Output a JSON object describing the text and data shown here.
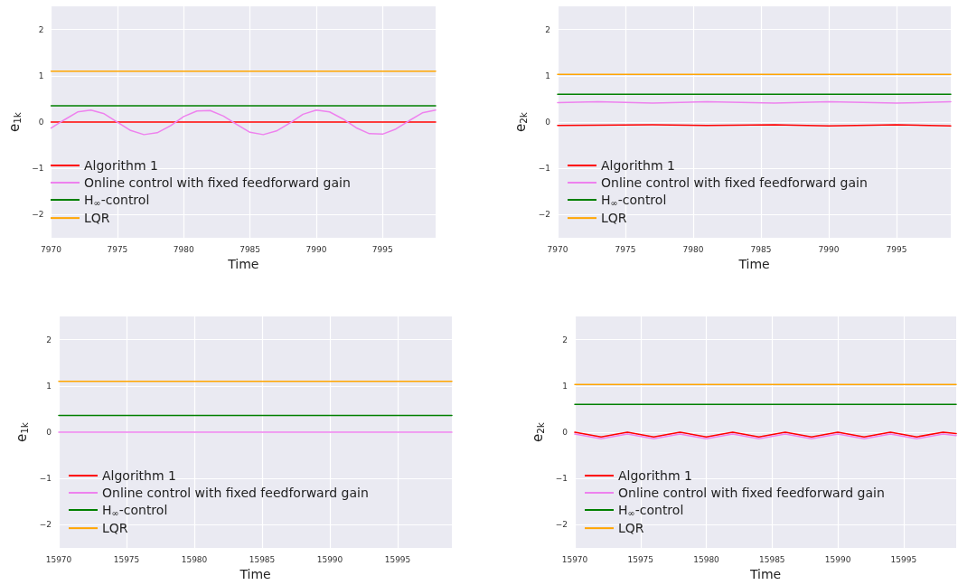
{
  "chart_data": [
    {
      "type": "line",
      "xlabel": "Time",
      "ylabel": "e$_{1k}$",
      "xlim": [
        7970,
        7999
      ],
      "xticks": [
        7970,
        7975,
        7980,
        7985,
        7990,
        7995
      ],
      "ylim": [
        -2.5,
        2.5
      ],
      "yticks": [
        -2,
        -1,
        0,
        1,
        2
      ],
      "grid": true,
      "legend": "bottom left",
      "marker": "none",
      "line_style": "solid",
      "series": [
        {
          "name": "Algorithm 1",
          "color": "#ff0000",
          "x": [
            7970,
            7999
          ],
          "values": [
            0,
            0
          ]
        },
        {
          "name": "Online control with fixed feedforward gain",
          "color": "#ee82ee",
          "x": [
            7970,
            7971,
            7972,
            7973,
            7974,
            7975,
            7976,
            7977,
            7978,
            7979,
            7980,
            7981,
            7982,
            7983,
            7984,
            7985,
            7986,
            7987,
            7988,
            7989,
            7990,
            7991,
            7992,
            7993,
            7994,
            7995,
            7996,
            7997,
            7998,
            7999
          ],
          "values": [
            -0.13,
            0.05,
            0.22,
            0.26,
            0.18,
            0.0,
            -0.18,
            -0.27,
            -0.23,
            -0.08,
            0.12,
            0.24,
            0.25,
            0.13,
            -0.05,
            -0.22,
            -0.27,
            -0.19,
            -0.02,
            0.17,
            0.26,
            0.22,
            0.07,
            -0.12,
            -0.25,
            -0.26,
            -0.15,
            0.03,
            0.2,
            0.26
          ]
        },
        {
          "name": "H$_{∞}$-control",
          "color": "#008000",
          "x": [
            7970,
            7999
          ],
          "values": [
            0.35,
            0.35
          ]
        },
        {
          "name": "LQR",
          "color": "#ffa500",
          "x": [
            7970,
            7999
          ],
          "values": [
            1.1,
            1.1
          ]
        }
      ]
    },
    {
      "type": "line",
      "xlabel": "Time",
      "ylabel": "e$_{2k}$",
      "xlim": [
        7970,
        7999
      ],
      "xticks": [
        7970,
        7975,
        7980,
        7985,
        7990,
        7995
      ],
      "ylim": [
        -2.5,
        2.5
      ],
      "yticks": [
        -2,
        -1,
        0,
        1,
        2
      ],
      "grid": true,
      "legend": "bottom left",
      "marker": "none",
      "line_style": "solid",
      "series": [
        {
          "name": "Algorithm 1",
          "color": "#ff0000",
          "x": [
            7970,
            7977,
            7981,
            7986,
            7990,
            7995,
            7999
          ],
          "values": [
            -0.07,
            -0.06,
            -0.07,
            -0.06,
            -0.08,
            -0.06,
            -0.08
          ]
        },
        {
          "name": "Online control with fixed feedforward gain",
          "color": "#ee82ee",
          "x": [
            7970,
            7973,
            7977,
            7981,
            7986,
            7990,
            7995,
            7999
          ],
          "values": [
            0.42,
            0.44,
            0.41,
            0.44,
            0.41,
            0.44,
            0.41,
            0.44
          ]
        },
        {
          "name": "H$_{∞}$-control",
          "color": "#008000",
          "x": [
            7970,
            7999
          ],
          "values": [
            0.6,
            0.6
          ]
        },
        {
          "name": "LQR",
          "color": "#ffa500",
          "x": [
            7970,
            7999
          ],
          "values": [
            1.03,
            1.03
          ]
        }
      ]
    },
    {
      "type": "line",
      "xlabel": "Time",
      "ylabel": "e$_{1k}$",
      "xlim": [
        15970,
        15999
      ],
      "xticks": [
        15970,
        15975,
        15980,
        15985,
        15990,
        15995
      ],
      "ylim": [
        -2.5,
        2.5
      ],
      "yticks": [
        -2,
        -1,
        0,
        1,
        2
      ],
      "grid": true,
      "legend": "bottom left",
      "marker": "none",
      "line_style": "solid",
      "series": [
        {
          "name": "Algorithm 1",
          "color": "#ff0000"
        },
        {
          "name": "Online control with fixed feedforward gain",
          "color": "#ee82ee",
          "x": [
            15970,
            15999
          ],
          "values": [
            0,
            0
          ]
        },
        {
          "name": "H$_{∞}$-control",
          "color": "#008000",
          "x": [
            15970,
            15999
          ],
          "values": [
            0.36,
            0.36
          ]
        },
        {
          "name": "LQR",
          "color": "#ffa500",
          "x": [
            15970,
            15999
          ],
          "values": [
            1.1,
            1.1
          ]
        }
      ]
    },
    {
      "type": "line",
      "xlabel": "Time",
      "ylabel": "e$_{2k}$",
      "xlim": [
        15970,
        15999
      ],
      "xticks": [
        15970,
        15975,
        15980,
        15985,
        15990,
        15995
      ],
      "ylim": [
        -2.5,
        2.5
      ],
      "yticks": [
        -2,
        -1,
        0,
        1,
        2
      ],
      "grid": true,
      "legend": "bottom left",
      "marker": "none",
      "line_style": "solid",
      "series": [
        {
          "name": "Algorithm 1",
          "color": "#ff0000",
          "x": [
            15970,
            15972,
            15974,
            15976,
            15978,
            15980,
            15982,
            15984,
            15986,
            15988,
            15990,
            15992,
            15994,
            15996,
            15998,
            15999
          ],
          "values": [
            0,
            -0.1,
            0,
            -0.1,
            0,
            -0.1,
            0,
            -0.1,
            0,
            -0.1,
            0,
            -0.1,
            0,
            -0.1,
            0,
            -0.03
          ]
        },
        {
          "name": "Online control with fixed feedforward gain",
          "color": "#ee82ee",
          "x": [
            15970,
            15972,
            15974,
            15976,
            15978,
            15980,
            15982,
            15984,
            15986,
            15988,
            15990,
            15992,
            15994,
            15996,
            15998,
            15999
          ],
          "values": [
            -0.04,
            -0.14,
            -0.04,
            -0.14,
            -0.04,
            -0.14,
            -0.04,
            -0.14,
            -0.04,
            -0.14,
            -0.04,
            -0.14,
            -0.04,
            -0.14,
            -0.04,
            -0.07
          ]
        },
        {
          "name": "H$_{∞}$-control",
          "color": "#008000",
          "x": [
            15970,
            15999
          ],
          "values": [
            0.6,
            0.6
          ]
        },
        {
          "name": "LQR",
          "color": "#ffa500",
          "x": [
            15970,
            15999
          ],
          "values": [
            1.03,
            1.03
          ]
        }
      ]
    }
  ]
}
